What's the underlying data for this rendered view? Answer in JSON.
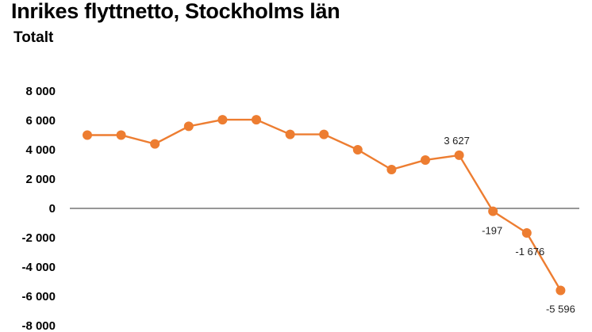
{
  "title": "Inrikes flyttnetto, Stockholms län",
  "subtitle": "Totalt",
  "colors": {
    "series": "#ED7D31",
    "zero_line": "#595959"
  },
  "chart_data": {
    "type": "line",
    "title": "Inrikes flyttnetto, Stockholms län",
    "subtitle": "Totalt",
    "xlabel": "",
    "ylabel": "",
    "ylim": [
      -8000,
      8000
    ],
    "yticks": [
      8000,
      6000,
      4000,
      2000,
      0,
      -2000,
      -4000,
      -6000,
      -8000
    ],
    "ytick_labels": [
      "8 000",
      "6 000",
      "4 000",
      "2 000",
      "0",
      "-2 000",
      "-4 000",
      "-6 000",
      "-8 000"
    ],
    "grid": false,
    "legend": "none",
    "series": [
      {
        "values": [
          5000,
          5000,
          4400,
          5600,
          6050,
          6050,
          5050,
          5050,
          4000,
          2650,
          3300,
          3627,
          -197,
          -1676,
          -5596
        ]
      }
    ],
    "data_labels": [
      {
        "index": 11,
        "text": "3 627"
      },
      {
        "index": 12,
        "text": "-197"
      },
      {
        "index": 13,
        "text": "-1 676"
      },
      {
        "index": 14,
        "text": "-5 596"
      }
    ]
  }
}
